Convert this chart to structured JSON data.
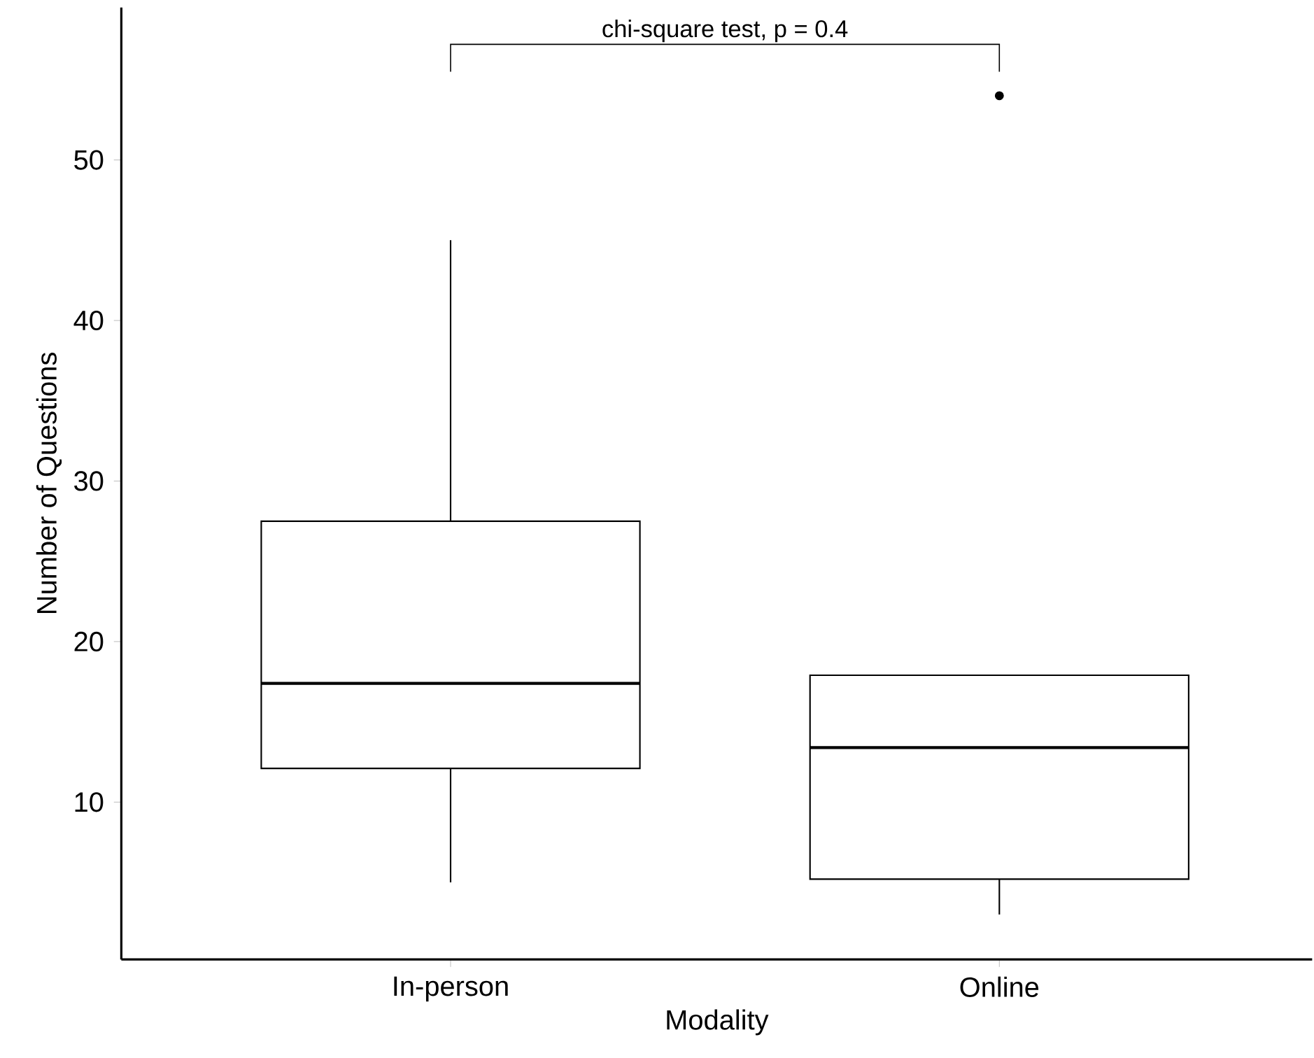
{
  "chart_data": {
    "type": "box",
    "xlabel": "Modality",
    "ylabel": "Number of Questions",
    "categories": [
      "In-person",
      "Online"
    ],
    "boxes": [
      {
        "low": 5.0,
        "q1": 12.1,
        "median": 17.4,
        "q3": 27.5,
        "high": 45.0
      },
      {
        "low": 3.0,
        "q1": 5.2,
        "median": 13.4,
        "q3": 17.9,
        "high": 17.9,
        "outliers": [
          54
        ]
      }
    ],
    "ylim": [
      0.2,
      59.5
    ],
    "yticks": [
      10,
      20,
      30,
      40,
      50
    ],
    "annotations": [
      "chi-square test, p = 0.4"
    ]
  }
}
